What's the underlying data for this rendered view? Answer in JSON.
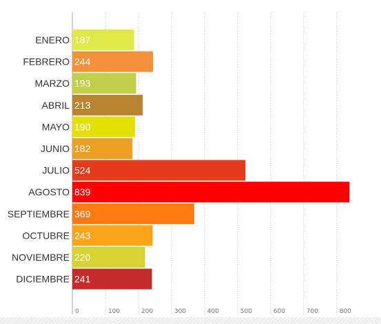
{
  "chart_data": {
    "type": "bar",
    "orientation": "horizontal",
    "categories": [
      "ENERO",
      "FEBRERO",
      "MARZO",
      "ABRIL",
      "MAYO",
      "JUNIO",
      "JULIO",
      "AGOSTO",
      "SEPTIEMBRE",
      "OCTUBRE",
      "NOVIEMBRE",
      "DICIEMBRE"
    ],
    "values": [
      187,
      244,
      193,
      213,
      190,
      182,
      524,
      839,
      369,
      243,
      220,
      241
    ],
    "colors": [
      "#dfe94a",
      "#f4913a",
      "#c2cf4c",
      "#b98432",
      "#e3df00",
      "#eca021",
      "#e33b1c",
      "#ff0000",
      "#ff7a10",
      "#fda51a",
      "#d7d235",
      "#c62b2b"
    ],
    "xlim": [
      0,
      850
    ],
    "x_ticks": [
      0,
      100,
      200,
      300,
      400,
      500,
      600,
      700,
      800
    ],
    "grid": "vertical-dotted",
    "value_labels": "inside-left",
    "title": "",
    "xlabel": "",
    "ylabel": ""
  }
}
